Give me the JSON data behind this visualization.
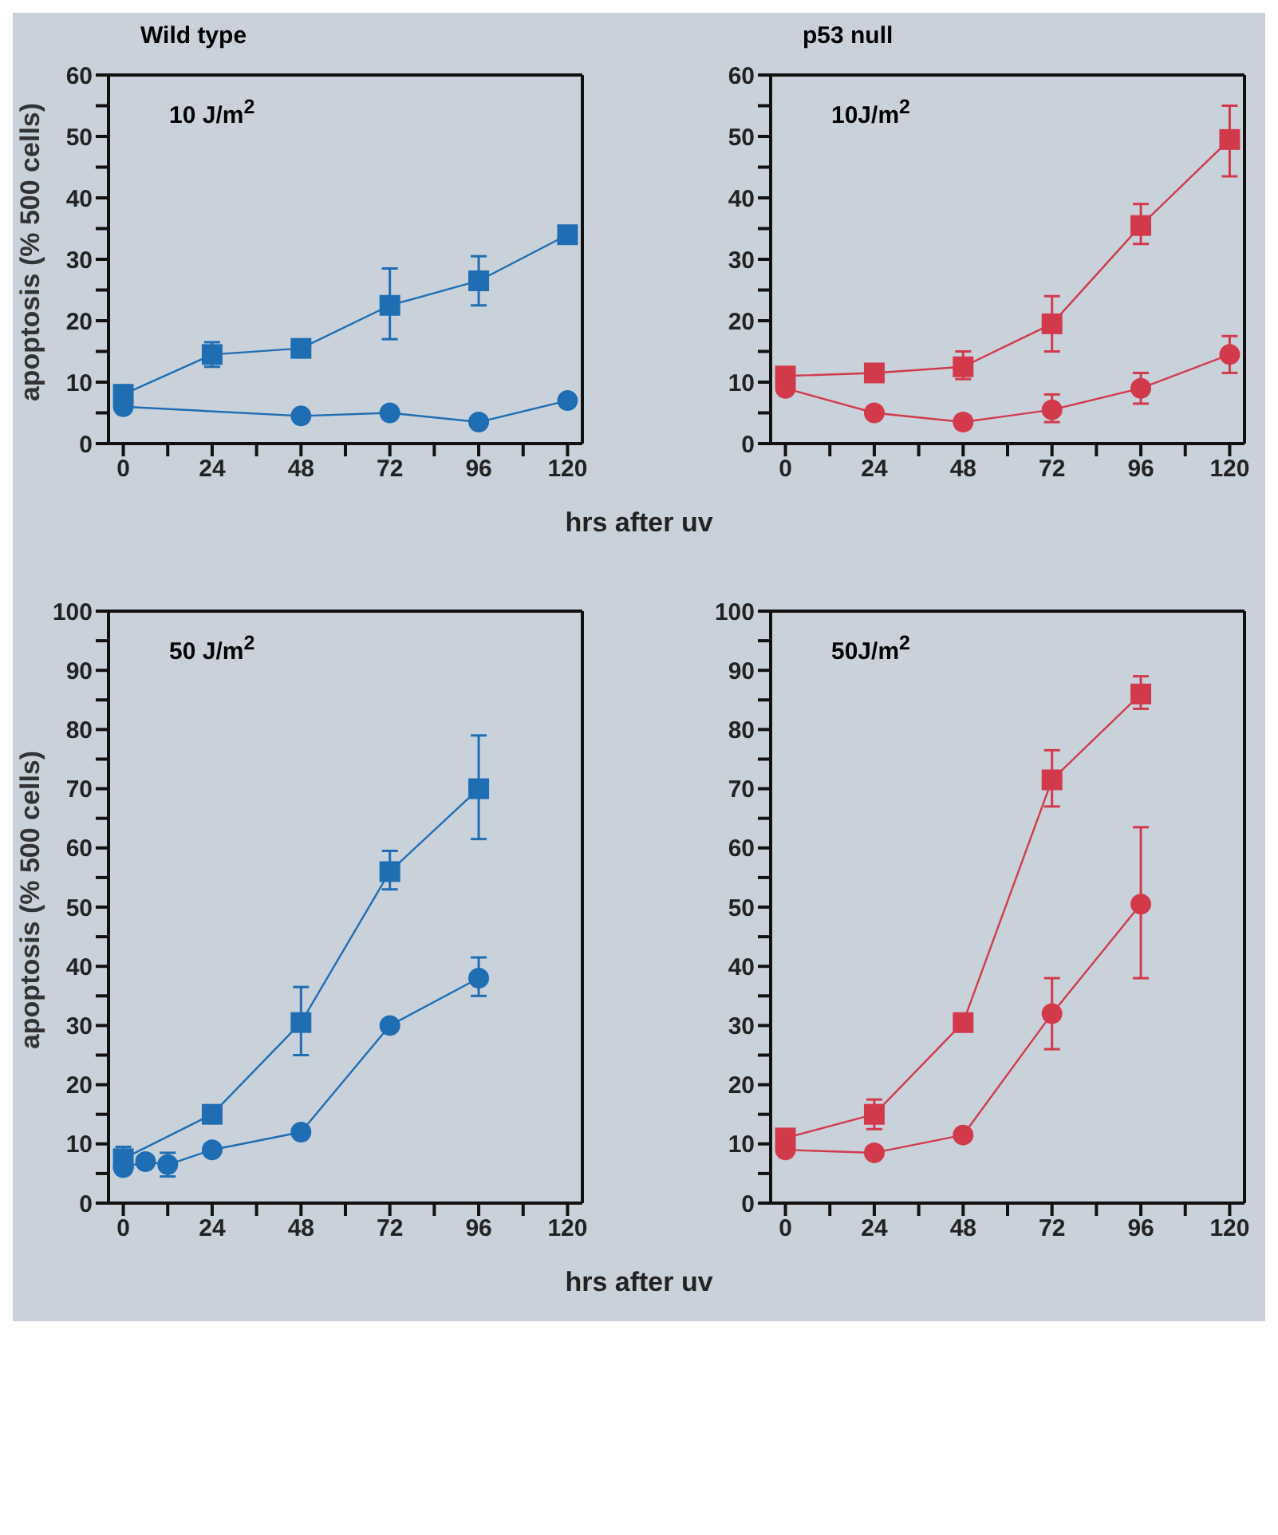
{
  "chart_data": [
    {
      "type": "line",
      "title": "Wild type",
      "xlabel": "hrs after uv",
      "ylabel": "apoptosis (% 500 cells)",
      "annotations": [
        "10 J/m$^{2}$"
      ],
      "xlim": [
        -4,
        124
      ],
      "xticks": [
        0,
        {
          "value": 12,
          "label": null
        },
        24,
        {
          "value": 36,
          "label": null
        },
        48,
        {
          "value": 60,
          "label": null
        },
        72,
        {
          "value": 84,
          "label": null
        },
        96,
        {
          "value": 108,
          "label": null
        },
        120
      ],
      "ylim": [
        0,
        60
      ],
      "yticks": [
        0,
        {
          "value": 5,
          "label": null
        },
        10,
        {
          "value": 15,
          "label": null
        },
        20,
        {
          "value": 25,
          "label": null
        },
        30,
        {
          "value": 35,
          "label": null
        },
        40,
        {
          "value": 45,
          "label": null
        },
        50,
        {
          "value": 55,
          "label": null
        },
        60
      ],
      "grid": false,
      "legend": false,
      "series": [
        {
          "color": "#1f6db3",
          "marker": "square",
          "x": [
            0,
            24,
            48,
            72,
            96,
            120
          ],
          "values": [
            8,
            14.5,
            15.5,
            22.5,
            26.5,
            34
          ],
          "errors": [
            1.5,
            2,
            1,
            [
              17,
              28.5
            ],
            [
              22.5,
              30.5
            ],
            1
          ]
        },
        {
          "color": "#1f6db3",
          "marker": "circle",
          "x": [
            0,
            48,
            72,
            96,
            120
          ],
          "values": [
            6,
            4.5,
            5,
            3.5,
            7
          ],
          "errors": [
            null,
            null,
            null,
            null,
            null
          ]
        }
      ]
    },
    {
      "type": "line",
      "title": "p53 null",
      "annotations": [
        "10J/m$^{2}$"
      ],
      "xlim": [
        -4,
        124
      ],
      "xticks": [
        0,
        {
          "value": 12,
          "label": null
        },
        24,
        {
          "value": 36,
          "label": null
        },
        48,
        {
          "value": 60,
          "label": null
        },
        72,
        {
          "value": 84,
          "label": null
        },
        96,
        {
          "value": 108,
          "label": null
        },
        120
      ],
      "ylim": [
        0,
        60
      ],
      "yticks": [
        0,
        {
          "value": 5,
          "label": null
        },
        10,
        {
          "value": 15,
          "label": null
        },
        20,
        {
          "value": 25,
          "label": null
        },
        30,
        {
          "value": 35,
          "label": null
        },
        40,
        {
          "value": 45,
          "label": null
        },
        50,
        {
          "value": 55,
          "label": null
        },
        60
      ],
      "grid": false,
      "legend": false,
      "series": [
        {
          "color": "#d23a4c",
          "marker": "square",
          "x": [
            0,
            24,
            48,
            72,
            96,
            120
          ],
          "values": [
            11,
            11.5,
            12.5,
            19.5,
            35.5,
            49.5
          ],
          "errors": [
            1,
            1,
            [
              10.5,
              15
            ],
            [
              15,
              24
            ],
            [
              32.5,
              39
            ],
            [
              43.5,
              55
            ]
          ]
        },
        {
          "color": "#d23a4c",
          "marker": "circle",
          "x": [
            0,
            24,
            48,
            72,
            96,
            120
          ],
          "values": [
            9,
            5,
            3.5,
            5.5,
            9,
            14.5
          ],
          "errors": [
            null,
            null,
            1,
            [
              3.5,
              8
            ],
            [
              6.5,
              11.5
            ],
            [
              11.5,
              17.5
            ]
          ]
        }
      ]
    },
    {
      "type": "line",
      "xlabel": "hrs after uv",
      "ylabel": "apoptosis (% 500 cells)",
      "annotations": [
        "50 J/m$^{2}$"
      ],
      "xlim": [
        -4,
        124
      ],
      "xticks": [
        0,
        {
          "value": 12,
          "label": null
        },
        24,
        {
          "value": 36,
          "label": null
        },
        48,
        {
          "value": 60,
          "label": null
        },
        72,
        {
          "value": 84,
          "label": null
        },
        96,
        {
          "value": 108,
          "label": null
        },
        120
      ],
      "ylim": [
        0,
        100
      ],
      "yticks": [
        0,
        {
          "value": 5,
          "label": null
        },
        10,
        {
          "value": 15,
          "label": null
        },
        20,
        {
          "value": 25,
          "label": null
        },
        30,
        {
          "value": 35,
          "label": null
        },
        40,
        {
          "value": 45,
          "label": null
        },
        50,
        {
          "value": 55,
          "label": null
        },
        60,
        {
          "value": 65,
          "label": null
        },
        70,
        {
          "value": 75,
          "label": null
        },
        80,
        {
          "value": 85,
          "label": null
        },
        90,
        {
          "value": 95,
          "label": null
        },
        100
      ],
      "grid": false,
      "legend": false,
      "series": [
        {
          "color": "#1f6db3",
          "marker": "square",
          "x": [
            0,
            24,
            48,
            72,
            96
          ],
          "values": [
            7.5,
            15,
            30.5,
            56,
            70
          ],
          "errors": [
            2,
            null,
            [
              25,
              36.5
            ],
            [
              53,
              59.5
            ],
            [
              61.5,
              79
            ]
          ]
        },
        {
          "color": "#1f6db3",
          "marker": "circle",
          "x": [
            0,
            6,
            12,
            24,
            48,
            72,
            96
          ],
          "values": [
            6,
            7,
            6.5,
            9,
            12,
            30,
            38
          ],
          "errors": [
            null,
            null,
            2,
            null,
            null,
            null,
            [
              35,
              41.5
            ]
          ]
        }
      ]
    },
    {
      "type": "line",
      "annotations": [
        "50J/m$^{2}$"
      ],
      "xlim": [
        -4,
        124
      ],
      "xticks": [
        0,
        {
          "value": 12,
          "label": null
        },
        24,
        {
          "value": 36,
          "label": null
        },
        48,
        {
          "value": 60,
          "label": null
        },
        72,
        {
          "value": 84,
          "label": null
        },
        96,
        {
          "value": 108,
          "label": null
        },
        120
      ],
      "ylim": [
        0,
        100
      ],
      "yticks": [
        0,
        {
          "value": 5,
          "label": null
        },
        10,
        {
          "value": 15,
          "label": null
        },
        20,
        {
          "value": 25,
          "label": null
        },
        30,
        {
          "value": 35,
          "label": null
        },
        40,
        {
          "value": 45,
          "label": null
        },
        50,
        {
          "value": 55,
          "label": null
        },
        60,
        {
          "value": 65,
          "label": null
        },
        70,
        {
          "value": 75,
          "label": null
        },
        80,
        {
          "value": 85,
          "label": null
        },
        90,
        {
          "value": 95,
          "label": null
        },
        100
      ],
      "grid": false,
      "legend": false,
      "series": [
        {
          "color": "#d23a4c",
          "marker": "square",
          "x": [
            0,
            24,
            48,
            72,
            96
          ],
          "values": [
            11,
            15,
            30.5,
            71.5,
            86
          ],
          "errors": [
            1,
            [
              12.5,
              17.5
            ],
            1.5,
            [
              67,
              76.5
            ],
            [
              83.5,
              89
            ]
          ]
        },
        {
          "color": "#d23a4c",
          "marker": "circle",
          "x": [
            0,
            24,
            48,
            72,
            96
          ],
          "values": [
            9,
            8.5,
            11.5,
            32,
            50.5
          ],
          "errors": [
            null,
            null,
            null,
            [
              26,
              38
            ],
            [
              38,
              63.5
            ]
          ]
        }
      ]
    }
  ]
}
